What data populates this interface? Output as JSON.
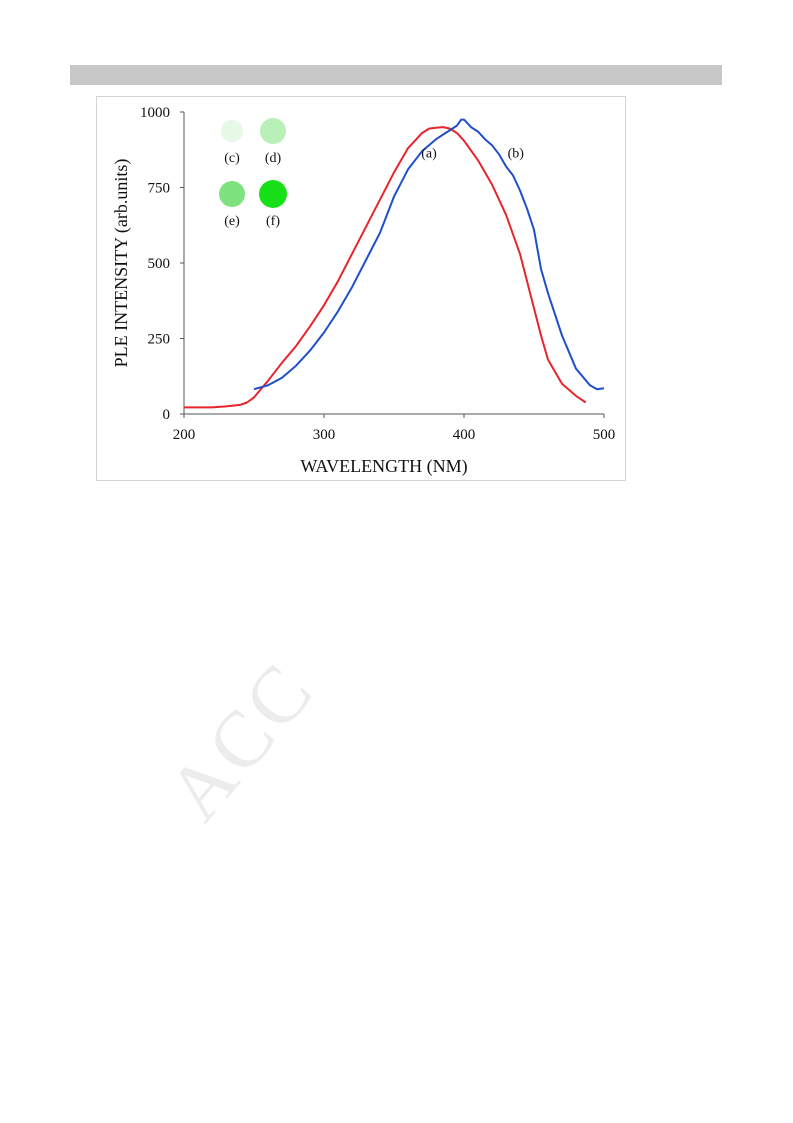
{
  "page": {
    "watermark_text": "ACC"
  },
  "chart_data": {
    "type": "line",
    "xlabel": "WAVELENGTH (NM)",
    "ylabel": "PLE INTENSITY (arb.units)",
    "xlim": [
      200,
      500
    ],
    "ylim": [
      0,
      1000
    ],
    "xticks": [
      200,
      300,
      400,
      500
    ],
    "yticks": [
      0,
      250,
      500,
      750,
      1000
    ],
    "grid": false,
    "series": [
      {
        "name": "(a)",
        "color": "#e8242c",
        "x": [
          200,
          220,
          230,
          240,
          245,
          250,
          260,
          270,
          280,
          290,
          300,
          310,
          320,
          330,
          340,
          350,
          360,
          365,
          370,
          375,
          380,
          385,
          390,
          395,
          400,
          410,
          420,
          430,
          440,
          450,
          455,
          460,
          470,
          480,
          487
        ],
        "y": [
          22,
          22,
          25,
          30,
          38,
          55,
          110,
          170,
          225,
          290,
          360,
          440,
          530,
          620,
          710,
          800,
          880,
          905,
          930,
          945,
          948,
          950,
          945,
          930,
          905,
          840,
          760,
          660,
          530,
          350,
          260,
          180,
          100,
          60,
          38
        ]
      },
      {
        "name": "(b)",
        "color": "#1f4fc8",
        "x": [
          250,
          260,
          270,
          280,
          290,
          300,
          310,
          320,
          330,
          340,
          350,
          360,
          370,
          380,
          390,
          395,
          398,
          400,
          405,
          410,
          415,
          420,
          425,
          430,
          435,
          440,
          445,
          450,
          455,
          460,
          470,
          480,
          490,
          495,
          500
        ],
        "y": [
          82,
          95,
          120,
          160,
          210,
          270,
          340,
          420,
          510,
          600,
          720,
          810,
          870,
          910,
          940,
          955,
          975,
          975,
          950,
          935,
          910,
          890,
          860,
          820,
          790,
          740,
          680,
          610,
          480,
          400,
          260,
          150,
          95,
          82,
          85
        ]
      }
    ],
    "annotations": [
      {
        "text": "(a)",
        "x": 375,
        "y": 850
      },
      {
        "text": "(b)",
        "x": 437,
        "y": 850
      }
    ],
    "inset_markers": [
      {
        "label": "(c)",
        "color": "#e6f8e6"
      },
      {
        "label": "(d)",
        "color": "#b8f0b8"
      },
      {
        "label": "(e)",
        "color": "#7ee37e"
      },
      {
        "label": "(f)",
        "color": "#18e018"
      }
    ]
  }
}
